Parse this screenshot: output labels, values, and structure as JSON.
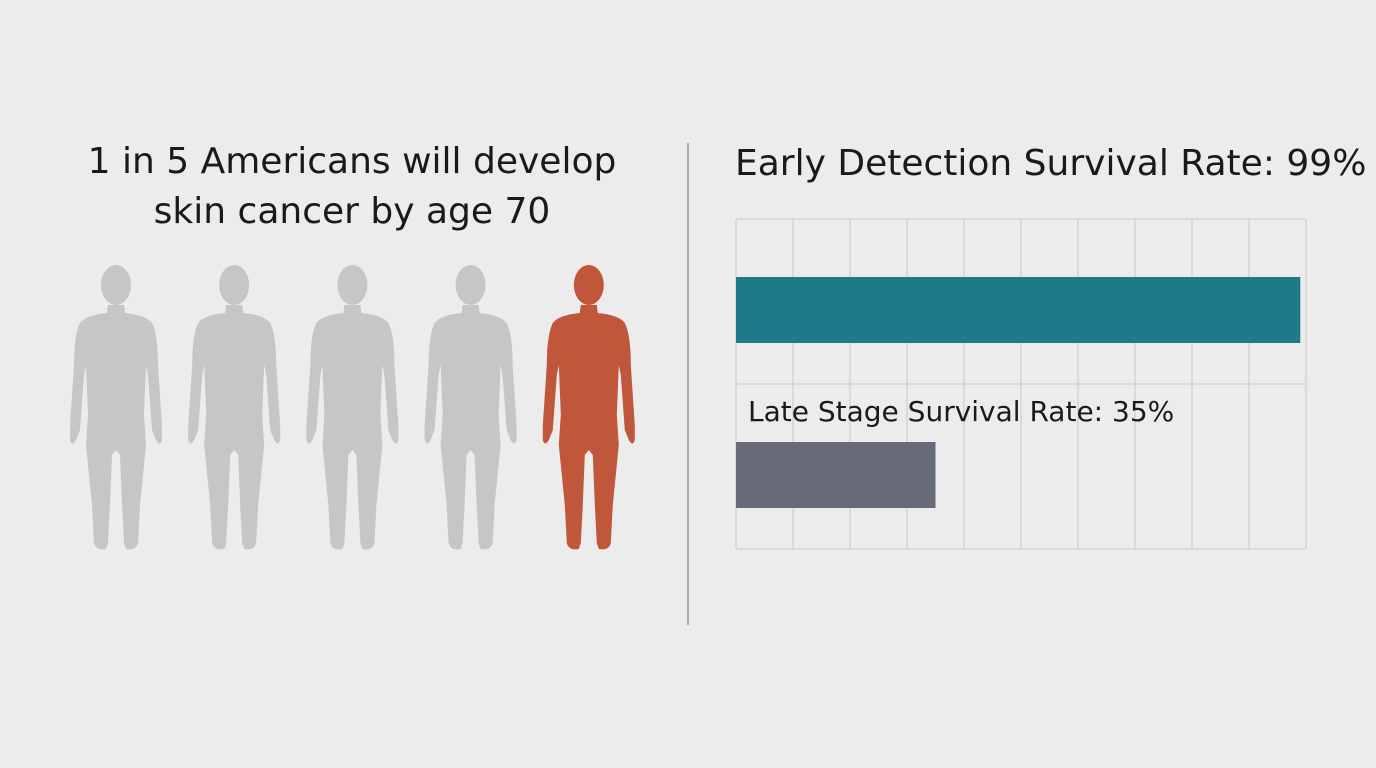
{
  "chart_data": [
    {
      "type": "pictogram",
      "title": [
        "1 in 5 Americans will develop",
        "skin cancer by age 70"
      ],
      "total": 5,
      "highlight": 1,
      "color": "#c6c6c6",
      "highlight_color": "#c0573a"
    },
    {
      "type": "bar",
      "orientation": "horizontal",
      "categories": [
        "Early Detection Survival Rate: 99%",
        "Late Stage Survival Rate: 35%"
      ],
      "values": [
        99,
        35
      ],
      "colors": [
        "#1f7a87",
        "#676a79"
      ],
      "xlim": [
        0,
        100
      ],
      "xticks": [
        0,
        10,
        20,
        30,
        40,
        50,
        60,
        70,
        80,
        90,
        100
      ],
      "grid": true
    }
  ]
}
